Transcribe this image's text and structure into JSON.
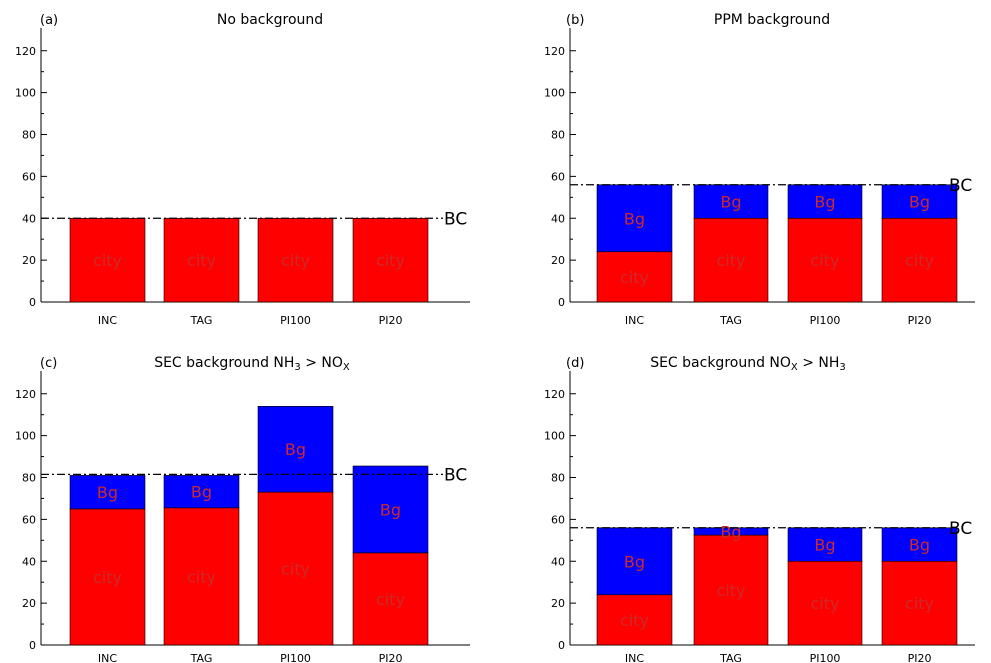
{
  "chart_data": [
    {
      "type": "bar",
      "panel_label": "(a)",
      "title": "No background",
      "title_parts": [],
      "categories": [
        "INC",
        "TAG",
        "PI100",
        "PI20"
      ],
      "series": [
        {
          "name": "city",
          "values": [
            40,
            40,
            40,
            40
          ]
        },
        {
          "name": "Bg",
          "values": [
            0,
            0,
            0,
            0
          ]
        }
      ],
      "stacked": true,
      "reference_line": {
        "label": "BC",
        "value": 40
      },
      "yticks": [
        0,
        20,
        40,
        60,
        80,
        100,
        120
      ],
      "ylim": [
        0,
        128
      ]
    },
    {
      "type": "bar",
      "panel_label": "(b)",
      "title": "PPM background",
      "title_parts": [],
      "categories": [
        "INC",
        "TAG",
        "PI100",
        "PI20"
      ],
      "series": [
        {
          "name": "city",
          "values": [
            24,
            40,
            40,
            40
          ]
        },
        {
          "name": "Bg",
          "values": [
            32,
            16,
            16,
            16
          ]
        }
      ],
      "stacked": true,
      "reference_line": {
        "label": "BC",
        "value": 56
      },
      "yticks": [
        0,
        20,
        40,
        60,
        80,
        100,
        120
      ],
      "ylim": [
        0,
        128
      ]
    },
    {
      "type": "bar",
      "panel_label": "(c)",
      "title": "",
      "title_parts": [
        {
          "text": "SEC background NH"
        },
        {
          "text": "3",
          "sub": true
        },
        {
          "text": " > NO"
        },
        {
          "text": "X",
          "sub": true
        }
      ],
      "categories": [
        "INC",
        "TAG",
        "PI100",
        "PI20"
      ],
      "series": [
        {
          "name": "city",
          "values": [
            65,
            65.5,
            73,
            44
          ]
        },
        {
          "name": "Bg",
          "values": [
            16,
            15.5,
            41,
            41.5
          ]
        }
      ],
      "stacked": true,
      "reference_line": {
        "label": "BC",
        "value": 81.5
      },
      "yticks": [
        0,
        20,
        40,
        60,
        80,
        100,
        120
      ],
      "ylim": [
        0,
        128
      ]
    },
    {
      "type": "bar",
      "panel_label": "(d)",
      "title": "",
      "title_parts": [
        {
          "text": "SEC background NO"
        },
        {
          "text": "X",
          "sub": true
        },
        {
          "text": " > NH"
        },
        {
          "text": "3",
          "sub": true
        }
      ],
      "categories": [
        "INC",
        "TAG",
        "PI100",
        "PI20"
      ],
      "series": [
        {
          "name": "city",
          "values": [
            24,
            52.5,
            40,
            40
          ]
        },
        {
          "name": "Bg",
          "values": [
            32,
            3.5,
            16,
            16
          ]
        }
      ],
      "stacked": true,
      "reference_line": {
        "label": "BC",
        "value": 56
      },
      "yticks": [
        0,
        20,
        40,
        60,
        80,
        100,
        120
      ],
      "ylim": [
        0,
        128
      ]
    }
  ],
  "colors": {
    "city": "#ff0000",
    "Bg": "#0000ff",
    "segment_label": "#cc2a2a",
    "reference_line": "#000000"
  }
}
